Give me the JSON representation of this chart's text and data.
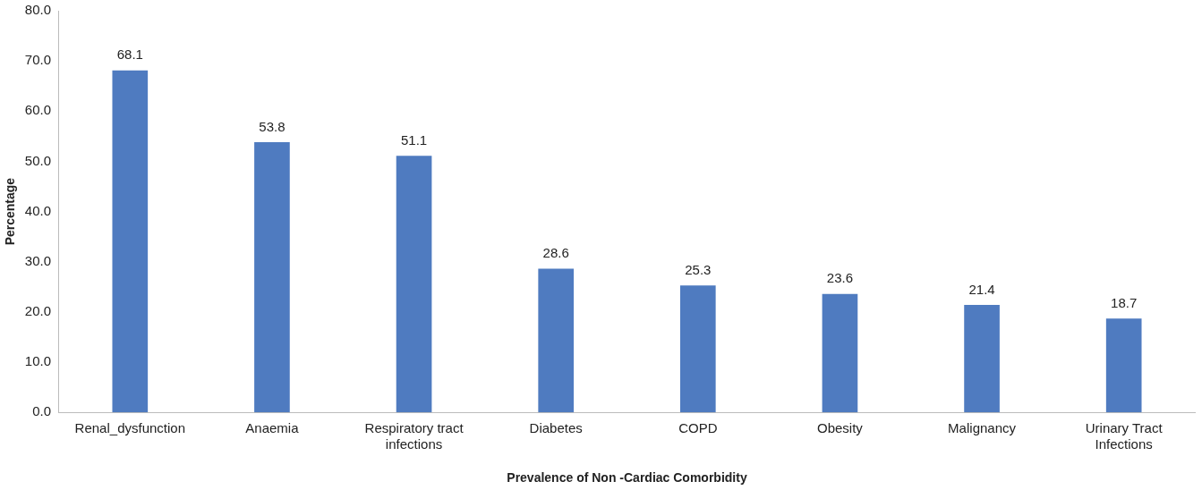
{
  "chart_data": {
    "type": "bar",
    "xlabel": "Prevalence of Non -Cardiac Comorbidity",
    "ylabel": "Percentage",
    "categories": [
      "Renal_dysfunction",
      "Anaemia",
      "Respiratory tract infections",
      "Diabetes",
      "COPD",
      "Obesity",
      "Malignancy",
      "Urinary Tract Infections"
    ],
    "values": [
      68.1,
      53.8,
      51.1,
      28.6,
      25.3,
      23.6,
      21.4,
      18.7
    ],
    "color": "#4f7bc0",
    "ylim": [
      0,
      80
    ],
    "yticks": [
      {
        "value": 0,
        "label": "0.0"
      },
      {
        "value": 10,
        "label": "10.0"
      },
      {
        "value": 20,
        "label": "20.0"
      },
      {
        "value": 30,
        "label": "30.0"
      },
      {
        "value": 40,
        "label": "40.0"
      },
      {
        "value": 50,
        "label": "50.0"
      },
      {
        "value": 60,
        "label": "60.0"
      },
      {
        "value": 70,
        "label": "70.0"
      },
      {
        "value": 80,
        "label": "80.0"
      }
    ],
    "grid": false,
    "legend": false,
    "data_labels": true
  }
}
